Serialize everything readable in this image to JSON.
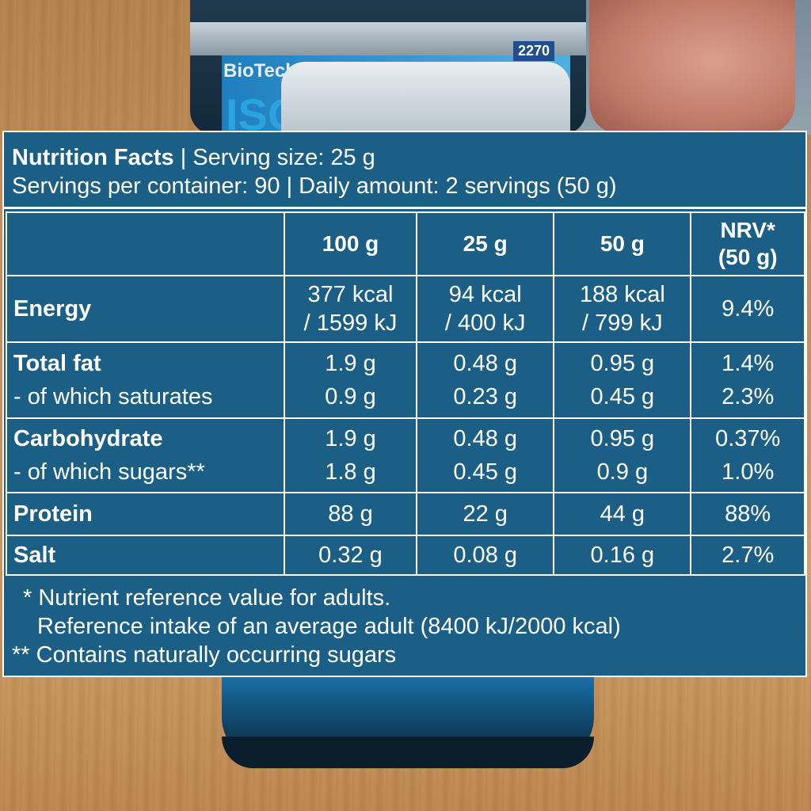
{
  "background": {
    "packaging_text": [
      "BioTechUSA",
      "2270",
      "ISO"
    ],
    "colors": {
      "panel": "#1b5f86",
      "text": "#ffffff",
      "wood": "#c8955f"
    }
  },
  "header": {
    "title": "Nutrition Facts",
    "serving_size": "| Serving size: 25 g",
    "servings_line": "Servings per container: 90 | Daily amount: 2 servings (50 g)"
  },
  "table": {
    "columns": [
      "",
      "100 g",
      "25 g",
      "50 g",
      "NRV*"
    ],
    "nrv_sub": "(50 g)",
    "rows": [
      {
        "labels": [
          "Energy"
        ],
        "values": [
          [
            "377 kcal",
            "/ 1599 kJ"
          ],
          [
            "94 kcal",
            "/ 400 kJ"
          ],
          [
            "188 kcal",
            "/ 799 kJ"
          ],
          [
            "9.4%"
          ]
        ]
      },
      {
        "labels": [
          "Total fat",
          "- of which saturates"
        ],
        "values": [
          [
            "1.9 g",
            "0.9 g"
          ],
          [
            "0.48 g",
            "0.23 g"
          ],
          [
            "0.95 g",
            "0.45 g"
          ],
          [
            "1.4%",
            "2.3%"
          ]
        ]
      },
      {
        "labels": [
          "Carbohydrate",
          "- of which sugars**"
        ],
        "values": [
          [
            "1.9 g",
            "1.8 g"
          ],
          [
            "0.48 g",
            "0.45 g"
          ],
          [
            "0.95 g",
            "0.9 g"
          ],
          [
            "0.37%",
            "1.0%"
          ]
        ]
      },
      {
        "labels": [
          "Protein"
        ],
        "values": [
          [
            "88 g"
          ],
          [
            "22 g"
          ],
          [
            "44 g"
          ],
          [
            "88%"
          ]
        ]
      },
      {
        "labels": [
          "Salt"
        ],
        "values": [
          [
            "0.32 g"
          ],
          [
            "0.08 g"
          ],
          [
            "0.16 g"
          ],
          [
            "2.7%"
          ]
        ]
      }
    ]
  },
  "footnotes": {
    "line1": "* Nutrient reference value for adults.",
    "line2": "Reference intake of an average adult (8400 kJ/2000 kcal)",
    "line3": "** Contains naturally occurring sugars"
  }
}
